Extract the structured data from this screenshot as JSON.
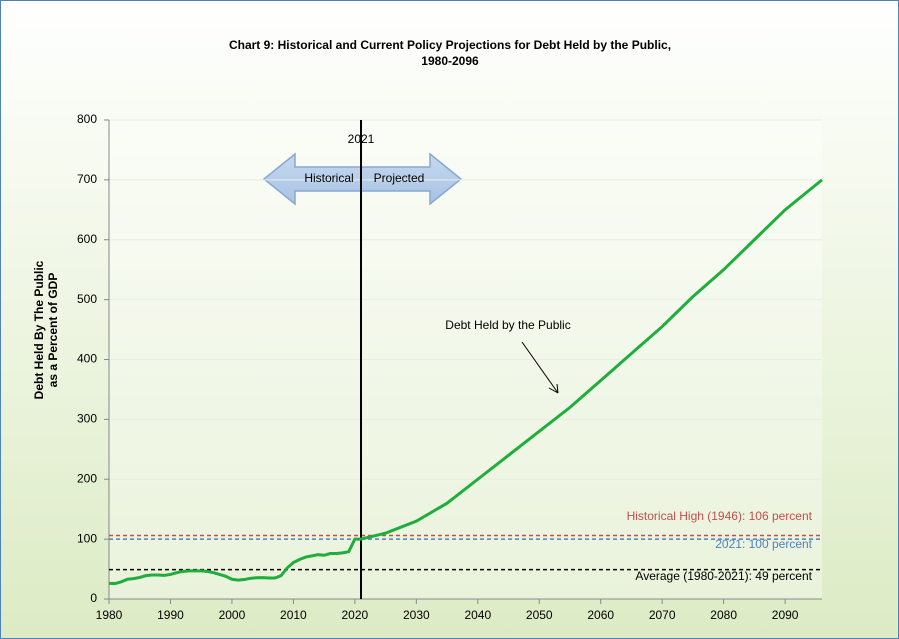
{
  "chart_data": {
    "type": "line",
    "title": "Chart 9:  Historical and Current Policy Projections for Debt Held by the Public,",
    "subtitle": "1980-2096",
    "ylabel": [
      "Debt Held By The Public",
      "as a Percent of GDP"
    ],
    "x": [
      1980,
      1981,
      1982,
      1983,
      1984,
      1985,
      1986,
      1987,
      1988,
      1989,
      1990,
      1991,
      1992,
      1993,
      1994,
      1995,
      1996,
      1997,
      1998,
      1999,
      2000,
      2001,
      2002,
      2003,
      2004,
      2005,
      2006,
      2007,
      2008,
      2009,
      2010,
      2011,
      2012,
      2013,
      2014,
      2015,
      2016,
      2017,
      2018,
      2019,
      2020,
      2021,
      2025,
      2030,
      2035,
      2040,
      2045,
      2050,
      2055,
      2060,
      2065,
      2070,
      2075,
      2080,
      2085,
      2090,
      2096
    ],
    "series": [
      {
        "name": "Debt Held by the Public",
        "color": "#1fad3c",
        "values": [
          26,
          25.8,
          28.7,
          33,
          34,
          36,
          39,
          40,
          40,
          39.5,
          41,
          44,
          46,
          47,
          47,
          47,
          46,
          44,
          41,
          38,
          33,
          31.5,
          32.5,
          34.5,
          35.5,
          35.6,
          35,
          35,
          39,
          52,
          61,
          66,
          70,
          72,
          74,
          73,
          76,
          76,
          77,
          79,
          100,
          100,
          110,
          130,
          160,
          200,
          240,
          280,
          320,
          365,
          410,
          455,
          505,
          550,
          600,
          650,
          700
        ]
      }
    ],
    "xlim": [
      1980,
      2096
    ],
    "xticks": [
      1980,
      1990,
      2000,
      2010,
      2020,
      2030,
      2040,
      2050,
      2060,
      2070,
      2080,
      2090
    ],
    "ylim": [
      0,
      800
    ],
    "yticks": [
      0,
      100,
      200,
      300,
      400,
      500,
      600,
      700,
      800
    ],
    "grid": true,
    "reference_lines": [
      {
        "value": 106,
        "label": "Historical High (1946): 106 percent",
        "color": "#c0504d"
      },
      {
        "value": 100,
        "label": "2021: 100 percent",
        "color": "#4f81bd"
      },
      {
        "value": 49,
        "label": "Average (1980-2021): 49 percent",
        "color": "#000000"
      }
    ],
    "vline": {
      "x": 2021,
      "label": "2021"
    },
    "arrow_labels": [
      "Historical",
      "Projected"
    ],
    "annotation": "Debt Held by the Public"
  }
}
